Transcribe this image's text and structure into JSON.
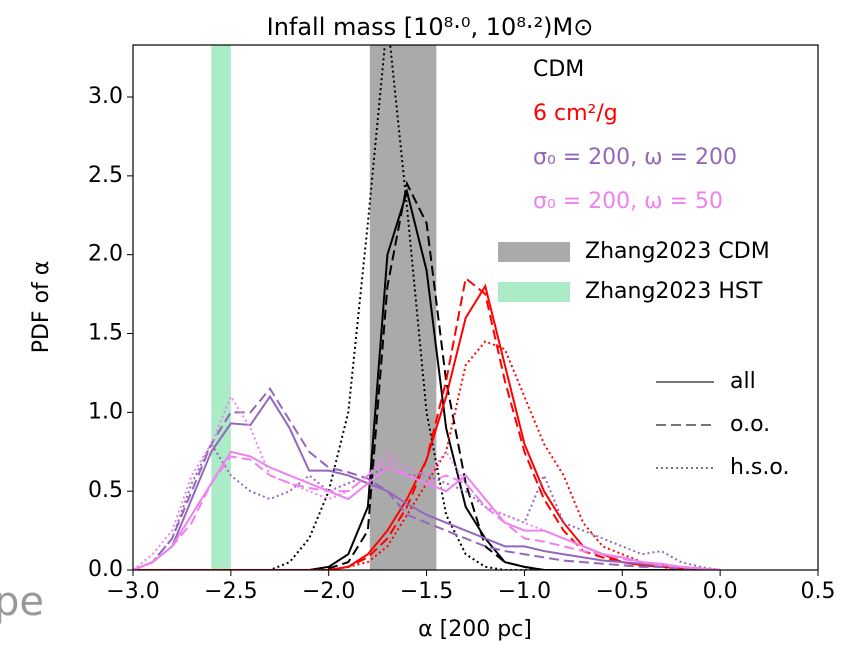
{
  "chart_data": {
    "type": "line",
    "title": "Infall mass [10⁸·⁰, 10⁸·²)M⊙",
    "x_label": "α [200 pc]",
    "y_label": "PDF of α",
    "background_text": "pe",
    "xlim": [
      -3.0,
      0.5
    ],
    "ylim": [
      0,
      3.33
    ],
    "xticks": [
      {
        "value": -3.0,
        "label": "−3.0"
      },
      {
        "value": -2.5,
        "label": "−2.5"
      },
      {
        "value": -2.0,
        "label": "−2.0"
      },
      {
        "value": -1.5,
        "label": "−1.5"
      },
      {
        "value": -1.0,
        "label": "−1.0"
      },
      {
        "value": -0.5,
        "label": "−0.5"
      },
      {
        "value": 0,
        "label": "0.0"
      },
      0.5
    ],
    "yticks": [
      {
        "value": 0,
        "label": "0.0"
      },
      0.5,
      {
        "value": 1,
        "label": "1.0"
      },
      1.5,
      {
        "value": 2,
        "label": "2.0"
      },
      2.5,
      {
        "value": 3,
        "label": "3.0"
      }
    ],
    "x": [
      -3.0,
      -2.9,
      -2.8,
      -2.7,
      -2.6,
      -2.5,
      -2.4,
      -2.3,
      -2.2,
      -2.1,
      -2.0,
      -1.9,
      -1.8,
      -1.7,
      -1.6,
      -1.5,
      -1.4,
      -1.3,
      -1.2,
      -1.1,
      -1.0,
      -0.9,
      -0.8,
      -0.7,
      -0.6,
      -0.5,
      -0.4,
      -0.3,
      -0.2,
      -0.1,
      0.0
    ],
    "line_styles": [
      {
        "name": "all",
        "dash": "solid"
      },
      {
        "name": "o.o.",
        "dash": "dashed"
      },
      {
        "name": "h.s.o.",
        "dash": "dotted"
      }
    ],
    "bands": [
      {
        "name": "Zhang2023 CDM",
        "color": "#aaaaaa",
        "range": [
          -1.79,
          -1.45
        ]
      },
      {
        "name": "Zhang2023 HST",
        "color": "#abebc6",
        "range": [
          -2.6,
          -2.5
        ]
      }
    ],
    "series": [
      {
        "name": "CDM",
        "color": "#000000",
        "lines": [
          {
            "values": [
              0,
              0,
              0,
              0,
              0,
              0,
              0,
              0,
              0,
              0,
              0.02,
              0.1,
              0.4,
              2.0,
              2.4,
              1.9,
              0.9,
              0.4,
              0.2,
              0.05,
              0.02,
              0,
              0,
              0,
              0,
              0,
              0,
              0,
              0,
              0,
              0
            ]
          },
          {
            "values": [
              0,
              0,
              0,
              0,
              0,
              0,
              0,
              0,
              0,
              0,
              0.01,
              0.05,
              0.25,
              1.8,
              2.45,
              2.2,
              1.2,
              0.55,
              0.15,
              0.05,
              0.02,
              0,
              0,
              0,
              0,
              0,
              0,
              0,
              0,
              0,
              0
            ]
          },
          {
            "values": [
              0,
              0,
              0,
              0,
              0,
              0,
              0,
              0,
              0.05,
              0.2,
              0.5,
              1.0,
              2.2,
              3.5,
              2.3,
              1.0,
              0.35,
              0.1,
              0.02,
              0,
              0,
              0,
              0,
              0,
              0,
              0,
              0,
              0,
              0,
              0,
              0
            ]
          }
        ]
      },
      {
        "name": "6 cm²/g",
        "color": "#ff0000",
        "lines": [
          {
            "values": [
              0,
              0,
              0,
              0,
              0,
              0,
              0,
              0,
              0,
              0,
              0,
              0.02,
              0.1,
              0.25,
              0.45,
              0.7,
              1.1,
              1.6,
              1.8,
              1.3,
              0.8,
              0.5,
              0.3,
              0.15,
              0.1,
              0.05,
              0.03,
              0.02,
              0.01,
              0,
              0
            ]
          },
          {
            "values": [
              0,
              0,
              0,
              0,
              0,
              0,
              0,
              0,
              0,
              0,
              0,
              0.02,
              0.08,
              0.2,
              0.4,
              0.7,
              1.2,
              1.85,
              1.75,
              1.2,
              0.75,
              0.45,
              0.25,
              0.12,
              0.08,
              0.05,
              0.03,
              0.02,
              0.01,
              0,
              0
            ]
          },
          {
            "values": [
              0,
              0,
              0,
              0,
              0,
              0,
              0,
              0,
              0,
              0,
              0,
              0.02,
              0.05,
              0.15,
              0.35,
              0.55,
              0.75,
              1.3,
              1.45,
              1.4,
              1.1,
              0.8,
              0.6,
              0.3,
              0.15,
              0.1,
              0.05,
              0.02,
              0,
              0,
              0
            ]
          }
        ]
      },
      {
        "name": "σ₀ = 200, ω = 200",
        "color": "#9467bd",
        "lines": [
          {
            "values": [
              0,
              0.05,
              0.15,
              0.45,
              0.75,
              0.93,
              0.92,
              1.1,
              0.9,
              0.63,
              0.63,
              0.6,
              0.55,
              0.5,
              0.42,
              0.35,
              0.3,
              0.25,
              0.2,
              0.15,
              0.15,
              0.12,
              0.1,
              0.08,
              0.06,
              0.05,
              0.04,
              0.03,
              0.02,
              0.01,
              0
            ]
          },
          {
            "values": [
              0,
              0.05,
              0.2,
              0.5,
              0.8,
              1.0,
              1.0,
              1.15,
              0.95,
              0.75,
              0.65,
              0.62,
              0.58,
              0.5,
              0.35,
              0.3,
              0.25,
              0.2,
              0.15,
              0.12,
              0.1,
              0.08,
              0.06,
              0.05,
              0.04,
              0.03,
              0.02,
              0.02,
              0.01,
              0.01,
              0
            ]
          },
          {
            "values": [
              0,
              0.05,
              0.2,
              0.55,
              0.8,
              0.6,
              0.5,
              0.45,
              0.5,
              0.6,
              0.5,
              0.55,
              0.6,
              0.65,
              0.6,
              0.6,
              0.55,
              0.5,
              0.4,
              0.35,
              0.3,
              0.6,
              0.3,
              0.25,
              0.2,
              0.15,
              0.1,
              0.12,
              0.05,
              0.02,
              0
            ]
          }
        ]
      },
      {
        "name": "σ₀ = 200, ω = 50",
        "color": "#ee82ee",
        "lines": [
          {
            "values": [
              0,
              0.05,
              0.15,
              0.35,
              0.55,
              0.75,
              0.72,
              0.65,
              0.6,
              0.55,
              0.5,
              0.45,
              0.55,
              0.65,
              0.6,
              0.55,
              0.5,
              0.6,
              0.45,
              0.3,
              0.25,
              0.25,
              0.2,
              0.15,
              0.1,
              0.08,
              0.05,
              0.04,
              0.02,
              0.01,
              0
            ]
          },
          {
            "values": [
              0,
              0.05,
              0.15,
              0.3,
              0.55,
              0.72,
              0.7,
              0.6,
              0.55,
              0.52,
              0.5,
              0.5,
              0.6,
              0.7,
              0.6,
              0.55,
              0.6,
              0.55,
              0.4,
              0.3,
              0.2,
              0.18,
              0.15,
              0.12,
              0.1,
              0.07,
              0.05,
              0.03,
              0.02,
              0.01,
              0
            ]
          },
          {
            "values": [
              0,
              0.1,
              0.25,
              0.6,
              0.8,
              1.1,
              0.9,
              0.6,
              0.55,
              0.5,
              0.45,
              0.5,
              0.6,
              0.75,
              0.65,
              0.6,
              0.75,
              0.55,
              0.4,
              0.35,
              0.3,
              0.25,
              0.2,
              0.15,
              0.1,
              0.08,
              0.05,
              0.03,
              0.02,
              0.01,
              0
            ]
          }
        ]
      }
    ]
  }
}
